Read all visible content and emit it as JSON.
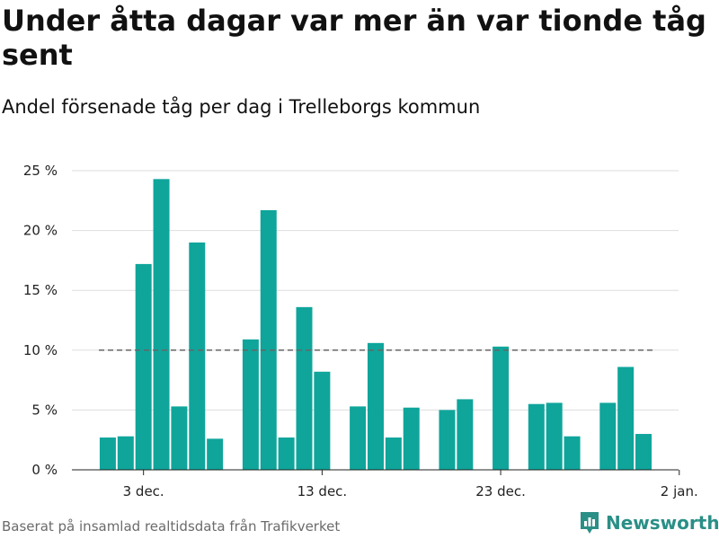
{
  "title": "Under åtta dagar var mer än var tionde tåg sent",
  "subtitle": "Andel försenade tåg per dag i Trelleborgs kommun",
  "source": "Baserat på insamlad realtidsdata från Trafikverket",
  "brand": {
    "name": "Newsworthy",
    "icon": "newsworthy-logo-icon",
    "color": "#2a8f86"
  },
  "colors": {
    "bar": "#0fa59b",
    "grid": "#dddddd",
    "threshold": "#666666",
    "axis": "#222222"
  },
  "chart_data": {
    "type": "bar",
    "x": [
      "2023-12-01",
      "2023-12-02",
      "2023-12-03",
      "2023-12-04",
      "2023-12-05",
      "2023-12-06",
      "2023-12-07",
      "2023-12-08",
      "2023-12-09",
      "2023-12-10",
      "2023-12-11",
      "2023-12-12",
      "2023-12-13",
      "2023-12-14",
      "2023-12-15",
      "2023-12-16",
      "2023-12-17",
      "2023-12-18",
      "2023-12-19",
      "2023-12-20",
      "2023-12-21",
      "2023-12-22",
      "2023-12-23",
      "2023-12-24",
      "2023-12-25",
      "2023-12-26",
      "2023-12-27",
      "2023-12-28",
      "2023-12-29",
      "2023-12-30",
      "2023-12-31"
    ],
    "values": [
      2.7,
      2.8,
      17.2,
      24.3,
      5.3,
      19.0,
      2.6,
      null,
      10.9,
      21.7,
      2.7,
      13.6,
      8.2,
      null,
      5.3,
      10.6,
      2.7,
      5.2,
      null,
      5.0,
      5.9,
      null,
      10.3,
      null,
      5.5,
      5.6,
      2.8,
      null,
      5.6,
      8.6,
      3.0
    ],
    "unit": "%",
    "ylim": [
      0,
      25
    ],
    "yticks": [
      0,
      5,
      10,
      15,
      20,
      25
    ],
    "ytick_labels": [
      "0 %",
      "5 %",
      "10 %",
      "15 %",
      "20 %",
      "25 %"
    ],
    "xticks": [
      "2023-12-03",
      "2023-12-13",
      "2023-12-23",
      "2024-01-02"
    ],
    "xtick_labels": [
      "3 dec.",
      "13 dec.",
      "23 dec.",
      "2 jan."
    ],
    "threshold": {
      "value": 10,
      "style": "dashed"
    },
    "grid": true
  }
}
